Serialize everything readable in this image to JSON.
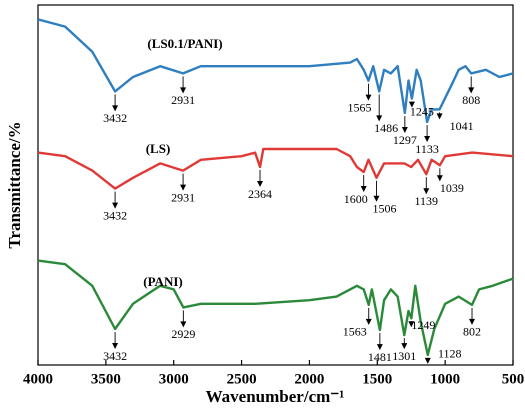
{
  "chart_data": {
    "type": "line",
    "xlabel": "Wavenumber/cm⁻¹",
    "ylabel": "Transmittance/%",
    "xlim": [
      4000,
      500
    ],
    "xticks": [
      4000,
      3500,
      3000,
      2500,
      2000,
      1500,
      1000,
      500
    ],
    "ylim": [
      0,
      100
    ],
    "series": [
      {
        "name": "(LS0.1/PANI)",
        "color": "#2e7ec0",
        "x": [
          4000,
          3800,
          3600,
          3432,
          3300,
          3100,
          2931,
          2800,
          2000,
          1700,
          1650,
          1600,
          1565,
          1530,
          1486,
          1450,
          1400,
          1350,
          1297,
          1270,
          1245,
          1210,
          1180,
          1133,
          1100,
          1041,
          950,
          900,
          850,
          808,
          700,
          600,
          500
        ],
        "values": [
          96,
          94,
          87,
          76,
          80,
          83,
          81,
          83,
          83,
          84,
          85,
          82,
          79,
          83,
          76,
          82,
          81,
          83,
          70,
          79,
          74,
          82,
          79,
          67.5,
          71,
          71,
          78,
          82,
          83,
          81,
          82,
          80,
          81
        ],
        "peaks": [
          {
            "value": 3432,
            "label": "3432"
          },
          {
            "value": 2931,
            "label": "2931"
          },
          {
            "value": 1565,
            "label": "1565"
          },
          {
            "value": 1486,
            "label": "1486"
          },
          {
            "value": 1297,
            "label": "1297"
          },
          {
            "value": 1245,
            "label": "1245"
          },
          {
            "value": 1133,
            "label": "1133"
          },
          {
            "value": 1041,
            "label": "1041"
          },
          {
            "value": 808,
            "label": "808"
          }
        ]
      },
      {
        "name": "(LS)",
        "color": "#e03a36",
        "x": [
          4000,
          3800,
          3600,
          3432,
          3300,
          3100,
          2931,
          2800,
          2500,
          2400,
          2364,
          2340,
          2000,
          1800,
          1700,
          1650,
          1600,
          1565,
          1506,
          1450,
          1300,
          1250,
          1200,
          1139,
          1100,
          1039,
          1000,
          800,
          500
        ],
        "values": [
          59,
          58,
          54,
          49,
          52,
          56,
          54,
          57,
          58,
          59,
          55,
          60,
          60,
          60,
          58,
          55,
          53.6,
          57,
          52,
          56,
          56,
          55,
          57,
          53,
          57,
          55.5,
          58,
          59,
          58
        ],
        "peaks": [
          {
            "value": 3432,
            "label": "3432"
          },
          {
            "value": 2931,
            "label": "2931"
          },
          {
            "value": 2364,
            "label": "2364"
          },
          {
            "value": 1600,
            "label": "1600"
          },
          {
            "value": 1506,
            "label": "1506"
          },
          {
            "value": 1139,
            "label": "1139"
          },
          {
            "value": 1039,
            "label": "1039"
          }
        ]
      },
      {
        "name": "(PANI)",
        "color": "#2a8a3a",
        "x": [
          4000,
          3800,
          3600,
          3432,
          3300,
          3100,
          3000,
          2929,
          2800,
          2400,
          2000,
          1800,
          1650,
          1600,
          1563,
          1540,
          1481,
          1450,
          1400,
          1350,
          1301,
          1270,
          1249,
          1220,
          1180,
          1128,
          1080,
          1000,
          900,
          802,
          750,
          650,
          500
        ],
        "values": [
          29,
          28,
          22,
          10,
          17,
          22,
          21,
          16,
          17,
          17,
          18,
          19,
          22,
          21,
          16.7,
          21,
          9.7,
          18,
          21,
          19,
          8.3,
          15,
          13,
          22,
          12,
          2.8,
          10,
          17,
          19,
          16.7,
          21,
          22,
          24
        ],
        "peaks": [
          {
            "value": 3432,
            "label": "3432"
          },
          {
            "value": 2929,
            "label": "2929"
          },
          {
            "value": 1563,
            "label": "1563"
          },
          {
            "value": 1481,
            "label": "1481"
          },
          {
            "value": 1301,
            "label": "1301"
          },
          {
            "value": 1249,
            "label": "1249"
          },
          {
            "value": 1128,
            "label": "1128"
          },
          {
            "value": 802,
            "label": "802"
          }
        ]
      }
    ]
  }
}
